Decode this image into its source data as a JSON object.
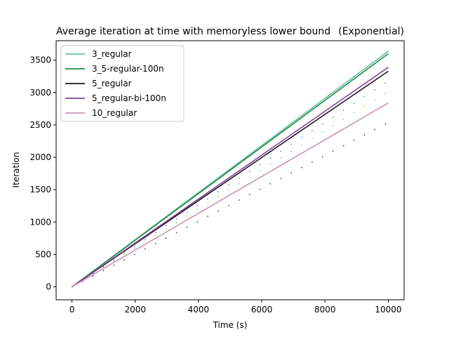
{
  "chart_data": {
    "type": "line",
    "title": "Average iteration at time with memoryless lower bound",
    "title_right": "(Exponential)",
    "xlabel": "Time (s)",
    "ylabel": "Iteration",
    "xlim": [
      -500,
      10500
    ],
    "ylim": [
      -200,
      3800
    ],
    "xticks": [
      0,
      2000,
      4000,
      6000,
      8000,
      10000
    ],
    "yticks": [
      0,
      500,
      1000,
      1500,
      2000,
      2500,
      3000,
      3500
    ],
    "legend_position": "top-left",
    "series": [
      {
        "name": "3_regular",
        "color": "#66c2a4",
        "x": [
          0,
          10000
        ],
        "y": [
          0,
          3640
        ]
      },
      {
        "name": "3_5-regular-100n",
        "color": "#238b45",
        "x": [
          0,
          10000
        ],
        "y": [
          0,
          3600
        ]
      },
      {
        "name": "5_regular",
        "color": "#1a1a1a",
        "x": [
          0,
          10000
        ],
        "y": [
          0,
          3330
        ]
      },
      {
        "name": "5_regular-bi-100n",
        "color": "#88419d",
        "x": [
          0,
          10000
        ],
        "y": [
          0,
          3390
        ]
      },
      {
        "name": "10_regular",
        "color": "#c994b4",
        "x": [
          0,
          10000
        ],
        "y": [
          0,
          2840
        ]
      }
    ],
    "dotted_series": [
      {
        "color": "#0a1a5c",
        "slope": 0.254
      },
      {
        "color": "#7fd33c",
        "slope": 0.302
      },
      {
        "color": "#2b7bba",
        "slope": 0.318
      }
    ]
  }
}
